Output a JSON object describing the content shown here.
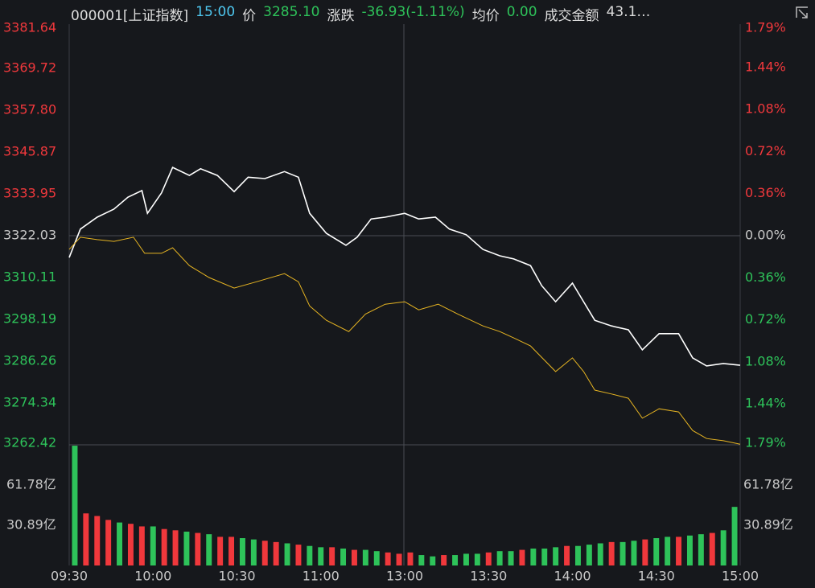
{
  "header": {
    "items": [
      {
        "text": "000001[上证指数]",
        "color": "#dcdcdc"
      },
      {
        "text": "15:00",
        "color": "#4fc8f0"
      },
      {
        "text": "价",
        "color": "#dcdcdc"
      },
      {
        "text": "3285.10",
        "color": "#2ec35a"
      },
      {
        "text": "涨跌",
        "color": "#dcdcdc"
      },
      {
        "text": "-36.93(-1.11%)",
        "color": "#2ec35a"
      },
      {
        "text": "均价",
        "color": "#dcdcdc"
      },
      {
        "text": "0.00",
        "color": "#2ec35a"
      },
      {
        "text": "成交金额",
        "color": "#dcdcdc"
      },
      {
        "text": "43.1…",
        "color": "#dcdcdc"
      }
    ]
  },
  "chart_data": [
    {
      "type": "line",
      "ylim": [
        3262.42,
        3381.64
      ],
      "yticks": [
        3381.64,
        3369.72,
        {
          "value": 3357.8,
          "label": "3357.80"
        },
        3345.87,
        3333.95,
        3322.03,
        3310.11,
        3298.19,
        3286.26,
        3274.34,
        3262.42
      ],
      "y2lim": [
        -1.79,
        1.79
      ],
      "y2ticks": [
        {
          "value": 1.79,
          "label": "1.79%"
        },
        {
          "value": 1.44,
          "label": "1.44%"
        },
        {
          "value": 1.08,
          "label": "1.08%"
        },
        {
          "value": 0.72,
          "label": "0.72%"
        },
        {
          "value": 0.36,
          "label": "0.36%"
        },
        {
          "value": 0,
          "label": "0.00%"
        },
        {
          "value": -0.36,
          "label": "0.36%"
        },
        {
          "value": -0.72,
          "label": "0.72%"
        },
        {
          "value": -1.08,
          "label": "1.08%"
        },
        {
          "value": -1.44,
          "label": "1.44%"
        },
        {
          "value": -1.79,
          "label": "1.79%"
        }
      ],
      "up_color": "#f0383c",
      "down_color": "#2ec35a",
      "flat_color": "#c8c8c8",
      "xlim": [
        0,
        240
      ],
      "xticks": [
        {
          "value": 0,
          "label": "09:30"
        },
        {
          "value": 30,
          "label": "10:00"
        },
        {
          "value": 60,
          "label": "10:30"
        },
        {
          "value": 90,
          "label": "11:00"
        },
        {
          "value": 120,
          "label": "13:00"
        },
        {
          "value": 150,
          "label": "13:30"
        },
        {
          "value": 180,
          "label": "14:00"
        },
        {
          "value": 210,
          "label": "14:30"
        },
        {
          "value": 240,
          "label": "15:00"
        }
      ],
      "series": [
        {
          "color": "#ffffff",
          "x": [
            0,
            4,
            10,
            16,
            21,
            26,
            28,
            33,
            37,
            43,
            47,
            53,
            59,
            64,
            70,
            77,
            82,
            86,
            92,
            99,
            103,
            108,
            113,
            120,
            125,
            131,
            136,
            142,
            148,
            154,
            159,
            165,
            169,
            174,
            180,
            184,
            188,
            194,
            200,
            205,
            211,
            218,
            223,
            228,
            234,
            240
          ],
          "values": [
            3315.8,
            3323.9,
            3327.3,
            3329.6,
            3333.0,
            3334.9,
            3328.4,
            3334.2,
            3341.5,
            3339.2,
            3341.1,
            3339.2,
            3334.6,
            3338.7,
            3338.3,
            3340.3,
            3338.7,
            3328.4,
            3322.7,
            3319.3,
            3321.6,
            3326.8,
            3327.3,
            3328.4,
            3326.8,
            3327.3,
            3323.9,
            3322.3,
            3318.1,
            3316.3,
            3315.4,
            3313.5,
            3307.8,
            3303.2,
            3308.5,
            3303.2,
            3297.9,
            3296.3,
            3295.2,
            3289.5,
            3294.1,
            3294.1,
            3287.2,
            3284.9,
            3285.6,
            3285.1
          ]
        },
        {
          "color": "#e6b422",
          "x": [
            0,
            4,
            10,
            16,
            23,
            27,
            33,
            37,
            43,
            50,
            59,
            67,
            77,
            82,
            86,
            92,
            100,
            106,
            113,
            120,
            125,
            132,
            139,
            148,
            154,
            159,
            165,
            174,
            180,
            184,
            188,
            194,
            200,
            205,
            211,
            218,
            223,
            228,
            234,
            240
          ],
          "values": [
            3318.1,
            3321.6,
            3320.9,
            3320.4,
            3321.6,
            3317.0,
            3317.0,
            3318.6,
            3313.5,
            3310.1,
            3307.1,
            3308.9,
            3311.2,
            3308.9,
            3302.0,
            3297.9,
            3294.7,
            3299.7,
            3302.5,
            3303.2,
            3300.9,
            3302.5,
            3299.7,
            3296.3,
            3294.7,
            3292.9,
            3290.6,
            3283.3,
            3287.2,
            3283.3,
            3278.0,
            3276.9,
            3275.7,
            3270.0,
            3272.7,
            3271.8,
            3266.5,
            3264.2,
            3263.6,
            3262.6
          ]
        }
      ]
    },
    {
      "type": "bar",
      "ylim": [
        0,
        92.67
      ],
      "yticks": [
        {
          "value": 61.78,
          "label": "61.78亿"
        },
        {
          "value": 30.89,
          "label": "30.89亿"
        }
      ],
      "xlim": [
        0,
        240
      ],
      "x": [
        2,
        6,
        10,
        14,
        18,
        22,
        26,
        30,
        34,
        38,
        42,
        46,
        50,
        54,
        58,
        62,
        66,
        70,
        74,
        78,
        82,
        86,
        90,
        94,
        98,
        102,
        106,
        110,
        114,
        118,
        122,
        126,
        130,
        134,
        138,
        142,
        146,
        150,
        154,
        158,
        162,
        166,
        170,
        174,
        178,
        182,
        186,
        190,
        194,
        198,
        202,
        206,
        210,
        214,
        218,
        222,
        226,
        230,
        234,
        238
      ],
      "values": [
        92,
        40,
        38,
        35,
        33,
        32,
        30,
        30,
        28,
        27,
        26,
        25,
        24,
        22,
        22,
        21,
        20,
        19,
        18,
        17,
        16,
        15,
        14,
        14,
        13,
        12,
        12,
        11,
        10,
        9,
        10,
        8,
        7,
        8,
        8,
        9,
        9,
        10,
        11,
        11,
        12,
        13,
        13,
        14,
        15,
        15,
        16,
        17,
        18,
        18,
        19,
        20,
        21,
        22,
        22,
        23,
        24,
        25,
        27,
        45
      ],
      "colors": [
        "#2ec35a",
        "#f0383c",
        "#f0383c",
        "#f0383c",
        "#2ec35a",
        "#f0383c",
        "#f0383c",
        "#2ec35a",
        "#f0383c",
        "#f0383c",
        "#2ec35a",
        "#f0383c",
        "#2ec35a",
        "#f0383c",
        "#f0383c",
        "#2ec35a",
        "#2ec35a",
        "#f0383c",
        "#f0383c",
        "#2ec35a",
        "#f0383c",
        "#2ec35a",
        "#2ec35a",
        "#f0383c",
        "#2ec35a",
        "#f0383c",
        "#2ec35a",
        "#2ec35a",
        "#f0383c",
        "#f0383c",
        "#f0383c",
        "#2ec35a",
        "#2ec35a",
        "#f0383c",
        "#2ec35a",
        "#2ec35a",
        "#2ec35a",
        "#f0383c",
        "#2ec35a",
        "#2ec35a",
        "#f0383c",
        "#2ec35a",
        "#2ec35a",
        "#2ec35a",
        "#f0383c",
        "#2ec35a",
        "#2ec35a",
        "#2ec35a",
        "#f0383c",
        "#2ec35a",
        "#2ec35a",
        "#f0383c",
        "#2ec35a",
        "#2ec35a",
        "#f0383c",
        "#2ec35a",
        "#2ec35a",
        "#f0383c",
        "#2ec35a",
        "#2ec35a"
      ],
      "tick_color": "#c8c8c8"
    }
  ]
}
